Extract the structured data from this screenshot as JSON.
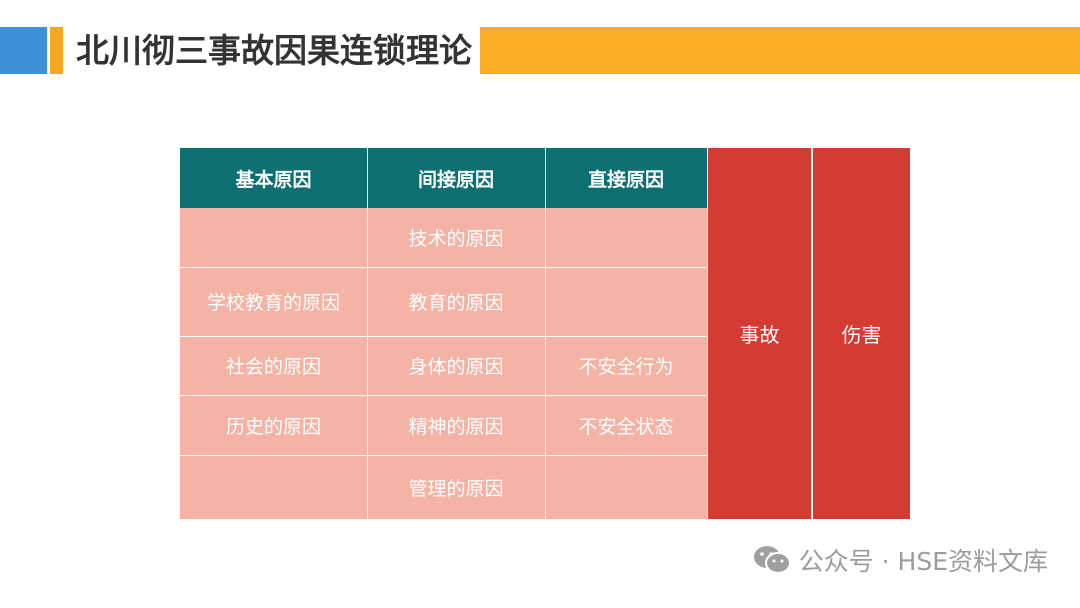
{
  "title": "北川彻三事故因果连锁理论",
  "table": {
    "headers": [
      "基本原因",
      "间接原因",
      "直接原因"
    ],
    "rows": [
      [
        "",
        "技术的原因",
        ""
      ],
      [
        "学校教育的原因",
        "教育的原因",
        ""
      ],
      [
        "社会的原因",
        "身体的原因",
        "不安全行为"
      ],
      [
        "历史的原因",
        "精神的原因",
        "不安全状态"
      ],
      [
        "",
        "管理的原因",
        ""
      ]
    ],
    "accident": "事故",
    "injury": "伤害"
  },
  "watermark": "公众号 · HSE资料文库",
  "colors": {
    "header": "#0e6f73",
    "body": "#f4b3a5",
    "red": "#d23c33",
    "title_band": "#f9ae25",
    "accent_blue": "#3d8fd6"
  }
}
